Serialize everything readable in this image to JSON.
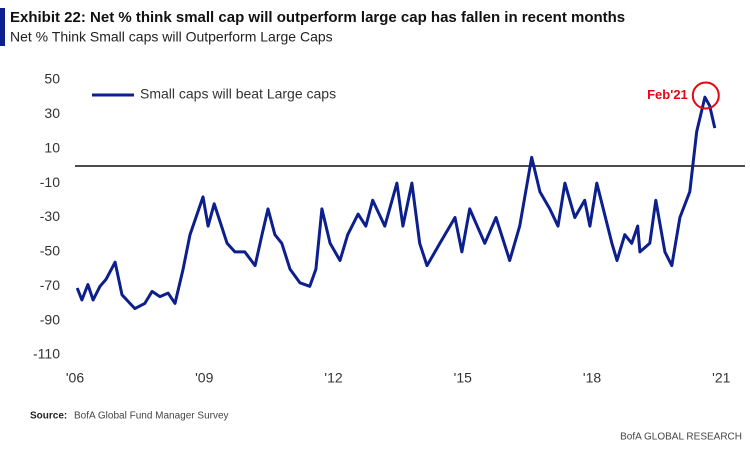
{
  "chart_data": {
    "type": "line",
    "title": "Exhibit 22: Net % think small cap will outperform large cap has fallen in recent months",
    "subtitle": "Net % Think Small caps will Outperform Large Caps",
    "source_label": "Source:",
    "source_text": "BofA Global Fund Manager Survey",
    "footer": "BofA GLOBAL RESEARCH",
    "reference_line": 0,
    "annotation": {
      "text": "Feb'21",
      "x": 2020.64,
      "y": 41,
      "color": "#e30613"
    },
    "legend": "top-left",
    "grid": false,
    "xlim": [
      2006,
      2021.55
    ],
    "xticks": [
      {
        "value": 2006,
        "label": "'06"
      },
      {
        "value": 2009,
        "label": "'09"
      },
      {
        "value": 2012,
        "label": "'12"
      },
      {
        "value": 2015,
        "label": "'15"
      },
      {
        "value": 2018,
        "label": "'18"
      },
      {
        "value": 2021,
        "label": "'21"
      }
    ],
    "ylim": [
      -110,
      50
    ],
    "yticks": [
      50,
      30,
      10,
      -10,
      -30,
      -50,
      -70,
      -90,
      -110
    ],
    "x": [
      2006.05,
      2006.16,
      2006.3,
      2006.42,
      2006.58,
      2006.72,
      2006.93,
      2007.09,
      2007.39,
      2007.62,
      2007.79,
      2007.97,
      2008.16,
      2008.32,
      2008.51,
      2008.67,
      2008.97,
      2009.09,
      2009.23,
      2009.36,
      2009.53,
      2009.71,
      2009.94,
      2010.18,
      2010.34,
      2010.48,
      2010.64,
      2010.8,
      2010.99,
      2011.22,
      2011.45,
      2011.59,
      2011.73,
      2011.92,
      2012.15,
      2012.33,
      2012.57,
      2012.75,
      2012.91,
      2013.19,
      2013.47,
      2013.61,
      2013.82,
      2014.0,
      2014.17,
      2014.47,
      2014.82,
      2014.98,
      2015.16,
      2015.51,
      2015.77,
      2016.09,
      2016.32,
      2016.6,
      2016.79,
      2017.02,
      2017.21,
      2017.37,
      2017.6,
      2017.83,
      2017.95,
      2018.11,
      2018.46,
      2018.58,
      2018.76,
      2018.92,
      2019.06,
      2019.11,
      2019.34,
      2019.48,
      2019.69,
      2019.85,
      2020.04,
      2020.27,
      2020.43,
      2020.62,
      2020.73,
      2020.85
    ],
    "series": [
      {
        "name": "Small caps will beat Large caps",
        "color": "#0c1f8c",
        "values": [
          -71,
          -78,
          -69,
          -78,
          -70,
          -66,
          -56,
          -75,
          -83,
          -80,
          -73,
          -76,
          -74,
          -80,
          -60,
          -40,
          -18,
          -35,
          -22,
          -32,
          -45,
          -50,
          -50,
          -58,
          -40,
          -25,
          -40,
          -45,
          -60,
          -68,
          -70,
          -60,
          -25,
          -45,
          -55,
          -40,
          -28,
          -35,
          -20,
          -35,
          -10,
          -35,
          -10,
          -45,
          -58,
          -45,
          -30,
          -50,
          -25,
          -45,
          -30,
          -55,
          -35,
          5,
          -15,
          -25,
          -35,
          -10,
          -30,
          -20,
          -35,
          -10,
          -45,
          -55,
          -40,
          -45,
          -35,
          -50,
          -45,
          -20,
          -50,
          -58,
          -30,
          -15,
          20,
          40,
          35,
          22
        ]
      }
    ]
  }
}
